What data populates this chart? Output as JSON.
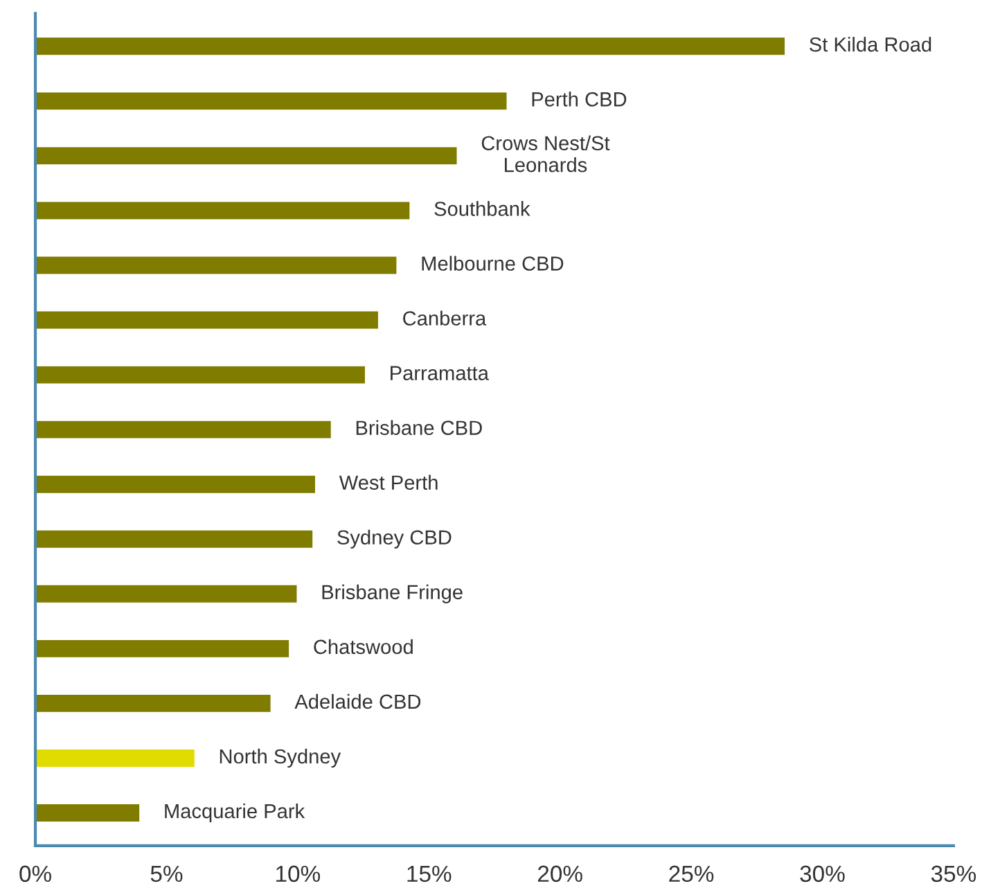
{
  "chart_data": {
    "type": "bar",
    "orientation": "horizontal",
    "categories": [
      "St Kilda Road",
      "Perth CBD",
      "Crows Nest/St\nLeonards",
      "Southbank",
      "Melbourne CBD",
      "Canberra",
      "Parramatta",
      "Brisbane CBD",
      "West Perth",
      "Sydney CBD",
      "Brisbane Fringe",
      "Chatswood",
      "Adelaide CBD",
      "North Sydney",
      "Macquarie Park"
    ],
    "values": [
      28.6,
      18.0,
      16.1,
      14.3,
      13.8,
      13.1,
      12.6,
      11.3,
      10.7,
      10.6,
      10.0,
      9.7,
      9.0,
      6.1,
      4.0
    ],
    "colors": [
      "#7f7c00",
      "#7f7c00",
      "#7f7c00",
      "#7f7c00",
      "#7f7c00",
      "#7f7c00",
      "#7f7c00",
      "#7f7c00",
      "#7f7c00",
      "#7f7c00",
      "#7f7c00",
      "#7f7c00",
      "#7f7c00",
      "#e0dc00",
      "#7f7c00"
    ],
    "xlim": [
      0,
      35
    ],
    "xticks": [
      {
        "value": 0,
        "label": "0%"
      },
      {
        "value": 5,
        "label": "5%"
      },
      {
        "value": 10,
        "label": "10%"
      },
      {
        "value": 15,
        "label": "15%"
      },
      {
        "value": 20,
        "label": "20%"
      },
      {
        "value": 25,
        "label": "25%"
      },
      {
        "value": 30,
        "label": "30%"
      },
      {
        "value": 35,
        "label": "35%"
      }
    ],
    "grid": false,
    "legend": false
  }
}
